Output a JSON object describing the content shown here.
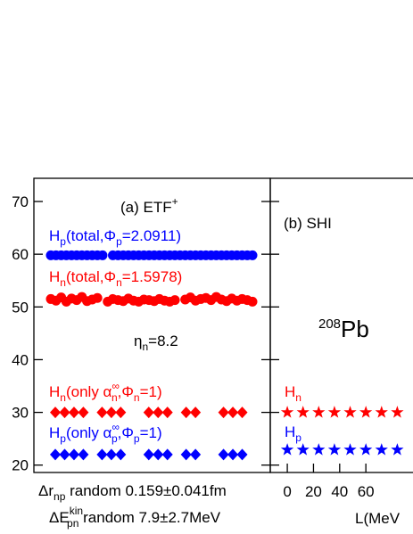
{
  "chart_data": [
    {
      "type": "scatter",
      "ylim": [
        18.6,
        74.4
      ],
      "yticks": [
        20,
        30,
        40,
        50,
        60,
        70
      ],
      "annotations": [
        {
          "parts": [
            "(a) ETF",
            "+"
          ]
        },
        {
          "parts": [
            "H",
            "p",
            "(total,Φ",
            "p",
            "=2.0911)"
          ]
        },
        {
          "parts": [
            "H",
            "n",
            "(total,Φ",
            "n",
            "=1.5978)"
          ]
        },
        {
          "parts": [
            "η",
            "n",
            "=8.2"
          ]
        },
        {
          "parts": [
            "H",
            "n",
            "(only α",
            "∞",
            "n",
            ",Φ",
            "n",
            "=1)"
          ]
        },
        {
          "parts": [
            "H",
            "p",
            "(only α",
            "∞",
            "p",
            ",Φ",
            "p",
            "=1)"
          ]
        },
        {
          "parts": [
            "Δr",
            "np",
            " random 0.159±0.041fm"
          ]
        },
        {
          "parts": [
            "ΔE",
            "kin",
            "pn",
            " random 7.9±2.7MeV"
          ]
        }
      ],
      "series": [
        {
          "color": "#0000ff",
          "marker": "circle",
          "values": [
            59.8,
            59.8,
            59.8,
            59.8,
            59.8,
            59.8,
            59.8,
            59.8,
            59.8,
            59.8,
            59.8,
            null,
            59.8,
            59.8,
            59.8,
            59.8,
            59.8,
            59.8,
            59.8,
            59.8,
            59.8,
            59.8,
            59.8,
            59.8,
            59.8,
            59.8,
            59.8,
            59.8,
            59.8,
            59.8,
            59.8,
            59.8,
            59.8,
            59.8,
            59.8,
            59.8,
            59.8,
            59.8,
            59.8,
            59.8
          ]
        },
        {
          "color": "#ff0000",
          "marker": "circle",
          "values": [
            51.5,
            51.2,
            51.8,
            51.0,
            51.6,
            51.3,
            51.9,
            51.1,
            51.4,
            51.7,
            null,
            51.0,
            51.5,
            51.3,
            51.1,
            51.6,
            51.2,
            51.0,
            51.4,
            51.3,
            51.1,
            51.5,
            51.2,
            51.0,
            51.3,
            null,
            51.4,
            51.8,
            51.2,
            51.5,
            51.7,
            51.3,
            51.9,
            51.4,
            51.1,
            51.6,
            51.2,
            51.5,
            51.3,
            51.0
          ]
        },
        {
          "color": "#ff0000",
          "marker": "diamond",
          "values": [
            30.0,
            30.0,
            30.0,
            30.0,
            null,
            30.0,
            30.0,
            30.0,
            null,
            null,
            30.0,
            30.0,
            30.0,
            null,
            30.0,
            30.0,
            null,
            null,
            30.0,
            30.0,
            30.0,
            null
          ]
        },
        {
          "color": "#0000ff",
          "marker": "diamond",
          "values": [
            22.0,
            22.0,
            22.0,
            22.0,
            null,
            22.0,
            22.0,
            22.0,
            null,
            null,
            22.0,
            22.0,
            22.0,
            null,
            22.0,
            22.0,
            null,
            null,
            22.0,
            22.0,
            22.0,
            null
          ]
        }
      ]
    },
    {
      "type": "scatter",
      "xlim": [
        -13,
        96
      ],
      "xticks": [
        0,
        20,
        40,
        60
      ],
      "xlabel": "L(MeV",
      "ylim": [
        18.6,
        74.4
      ],
      "yticks": [
        20,
        30,
        40,
        50,
        60,
        70
      ],
      "annotations": [
        {
          "parts": [
            "(b) SHI"
          ]
        },
        {
          "parts": [
            "208",
            "Pb"
          ]
        },
        {
          "parts": [
            "H",
            "n"
          ]
        },
        {
          "parts": [
            "H",
            "p"
          ]
        }
      ],
      "x": [
        0,
        12,
        24,
        36,
        48,
        60,
        72,
        84
      ],
      "series": [
        {
          "color": "#ff0000",
          "marker": "star",
          "values": [
            30.0,
            30.0,
            30.0,
            30.0,
            30.0,
            30.0,
            30.0,
            30.0
          ]
        },
        {
          "color": "#0000ff",
          "marker": "star",
          "values": [
            22.9,
            22.9,
            22.9,
            22.9,
            22.9,
            22.9,
            22.9,
            22.9
          ]
        }
      ]
    }
  ]
}
